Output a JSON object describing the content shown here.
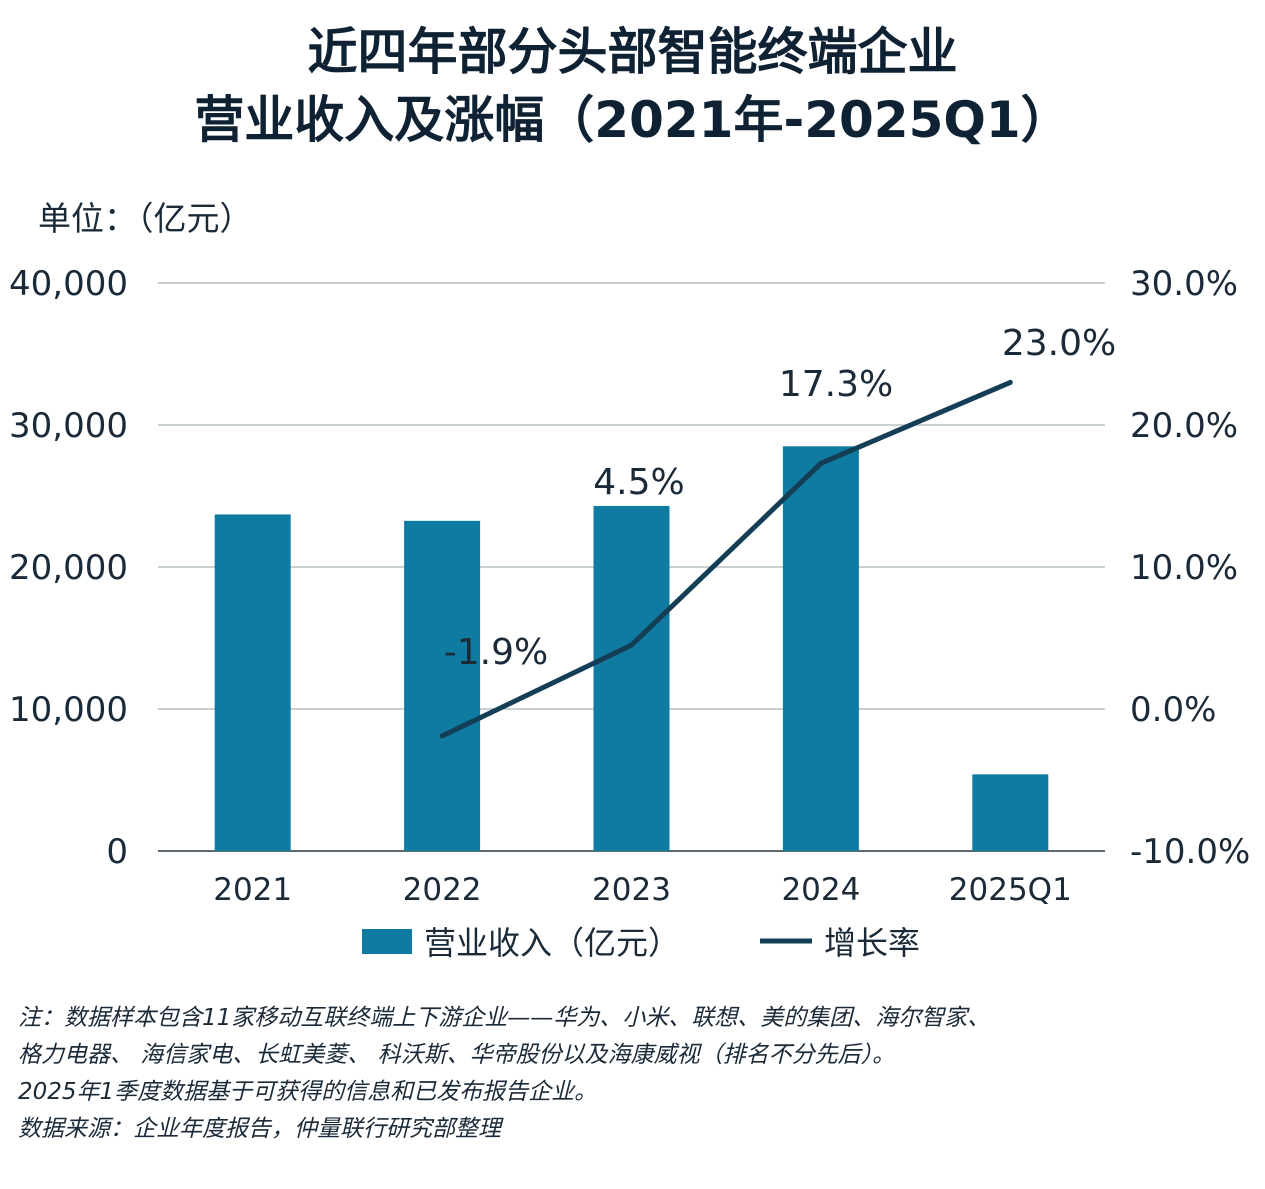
{
  "title_line1": "近四年部分头部智能终端企业",
  "title_line2": "营业收入及涨幅（2021年-2025Q1）",
  "unit_label": "单位：（亿元）",
  "notes": [
    "注：数据样本包含11家移动互联终端上下游企业——华为、小米、联想、美的集团、海尔智家、",
    "格力电器、 海信家电、长虹美菱、 科沃斯、华帝股份以及海康威视（排名不分先后）。",
    "2025年1季度数据基于可获得的信息和已发布报告企业。",
    "数据来源：企业年度报告，仲量联行研究部整理"
  ],
  "chart_data": {
    "type": "bar",
    "categories": [
      "2021",
      "2022",
      "2023",
      "2024",
      "2025Q1"
    ],
    "series": [
      {
        "name": "营业收入（亿元）",
        "type": "bar",
        "axis": "left",
        "color": "#107ba0",
        "values": [
          23700,
          23250,
          24300,
          28500,
          5400
        ]
      },
      {
        "name": "增长率",
        "type": "line",
        "axis": "right",
        "color": "#143d56",
        "values": [
          null,
          -1.9,
          4.5,
          17.3,
          23.0
        ],
        "labels": [
          null,
          "-1.9%",
          "4.5%",
          "17.3%",
          "23.0%"
        ]
      }
    ],
    "y_left": {
      "min": 0,
      "max": 40000,
      "ticks": [
        0,
        10000,
        20000,
        30000,
        40000
      ],
      "tick_labels": [
        "0",
        "10,000",
        "20,000",
        "30,000",
        "40,000"
      ]
    },
    "y_right": {
      "min": -10,
      "max": 30,
      "ticks": [
        -10,
        0,
        10,
        20,
        30
      ],
      "tick_labels": [
        "-10.0%",
        "0.0%",
        "10.0%",
        "20.0%",
        "30.0%"
      ]
    },
    "grid": true,
    "legend_position": "bottom"
  }
}
